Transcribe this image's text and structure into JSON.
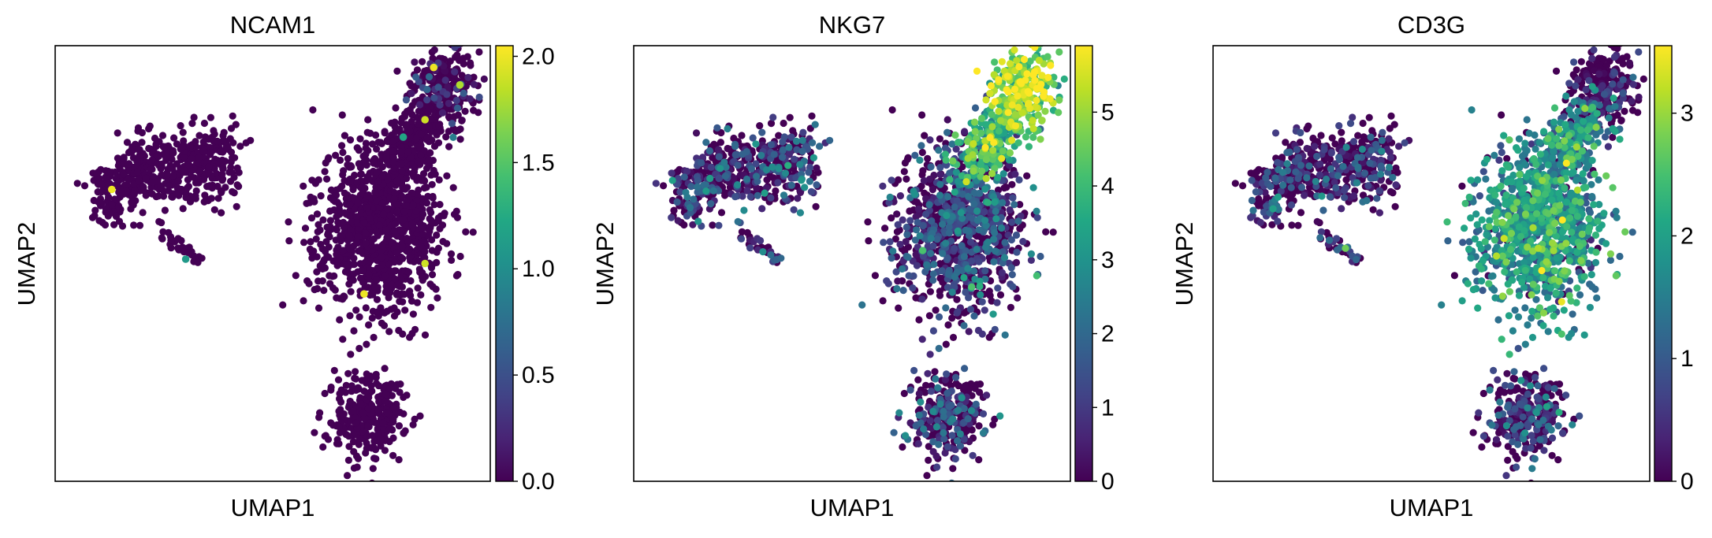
{
  "chart_data": [
    {
      "type": "scatter",
      "title": "NCAM1",
      "xlabel": "UMAP1",
      "ylabel": "UMAP2",
      "grid": false,
      "colorbar": {
        "colormap": "viridis",
        "range": [
          0,
          2.05
        ],
        "ticks": [
          0.0,
          0.5,
          1.0,
          1.5,
          2.0
        ],
        "tick_labels": [
          "0.0",
          "0.5",
          "1.0",
          "1.5",
          "2.0"
        ]
      },
      "clusters": [
        {
          "name": "left_cluster",
          "expression_mean": 0.0
        },
        {
          "name": "center_cluster",
          "expression_mean": 0.0
        },
        {
          "name": "top_right_cluster",
          "expression_mean": 0.05
        },
        {
          "name": "bottom_cluster",
          "expression_mean": 0.0
        }
      ],
      "highlight_points": [
        {
          "x": 0.13,
          "y": 0.67,
          "value": 2.0
        },
        {
          "x": 0.87,
          "y": 0.95,
          "value": 2.0
        },
        {
          "x": 0.93,
          "y": 0.91,
          "value": 1.8
        },
        {
          "x": 0.85,
          "y": 0.83,
          "value": 1.9
        },
        {
          "x": 0.8,
          "y": 0.79,
          "value": 1.2
        },
        {
          "x": 0.71,
          "y": 0.43,
          "value": 2.0
        },
        {
          "x": 0.85,
          "y": 0.5,
          "value": 1.9
        },
        {
          "x": 0.3,
          "y": 0.51,
          "value": 1.1
        }
      ]
    },
    {
      "type": "scatter",
      "title": "NKG7",
      "xlabel": "UMAP1",
      "ylabel": "UMAP2",
      "grid": false,
      "colorbar": {
        "colormap": "viridis",
        "range": [
          0,
          5.9
        ],
        "ticks": [
          0,
          1,
          2,
          3,
          4,
          5
        ],
        "tick_labels": [
          "0",
          "1",
          "2",
          "3",
          "4",
          "5"
        ]
      },
      "clusters": [
        {
          "name": "left_cluster",
          "expression_mean": 0.9
        },
        {
          "name": "center_cluster",
          "expression_mean": 1.1
        },
        {
          "name": "neck",
          "expression_mean": 3.8
        },
        {
          "name": "top_right_cluster",
          "expression_mean": 4.8
        },
        {
          "name": "bottom_cluster",
          "expression_mean": 0.9
        }
      ]
    },
    {
      "type": "scatter",
      "title": "CD3G",
      "xlabel": "UMAP1",
      "ylabel": "UMAP2",
      "grid": false,
      "colorbar": {
        "colormap": "viridis",
        "range": [
          0,
          3.55
        ],
        "ticks": [
          0,
          1,
          2,
          3
        ],
        "tick_labels": [
          "0",
          "1",
          "2",
          "3"
        ]
      },
      "clusters": [
        {
          "name": "left_cluster",
          "expression_mean": 0.4
        },
        {
          "name": "center_cluster",
          "expression_mean": 1.7
        },
        {
          "name": "neck",
          "expression_mean": 1.6
        },
        {
          "name": "top_right_cluster",
          "expression_mean": 0.2
        },
        {
          "name": "bottom_cluster",
          "expression_mean": 0.5
        }
      ]
    }
  ]
}
